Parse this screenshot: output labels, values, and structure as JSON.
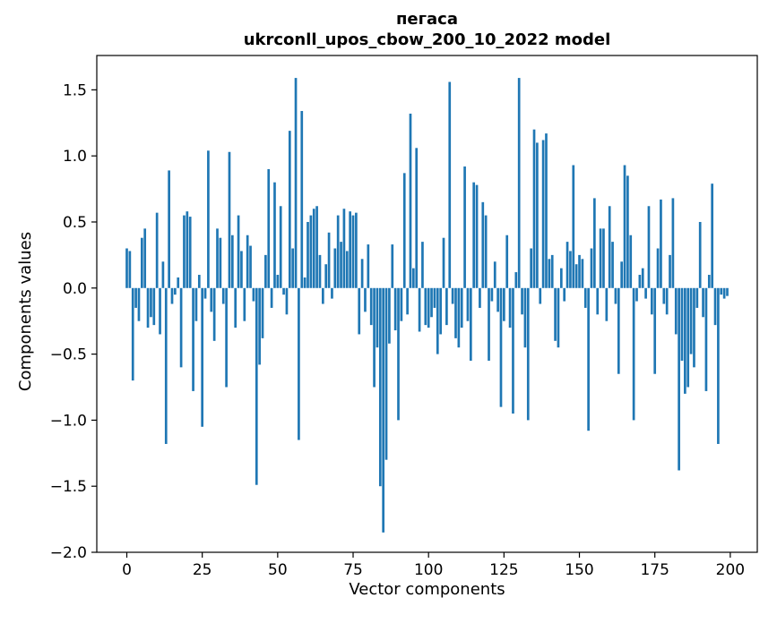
{
  "chart_data": {
    "type": "bar",
    "title_line1": "пегаса",
    "title_line2": "ukrconll_upos_cbow_200_10_2022 model",
    "xlabel": "Vector components",
    "ylabel": "Components values",
    "bar_color": "#1f77b4",
    "background_color": "#ffffff",
    "grid": false,
    "legend": "none",
    "bar_width": 0.8,
    "xlim": [
      -9.95,
      208.95
    ],
    "ylim": [
      -2.0,
      1.76
    ],
    "xticks": {
      "values": [
        0,
        25,
        50,
        75,
        100,
        125,
        150,
        175,
        200
      ],
      "labels": [
        "0",
        "25",
        "50",
        "75",
        "100",
        "125",
        "150",
        "175",
        "200"
      ]
    },
    "yticks": {
      "values": [
        -2.0,
        -1.5,
        -1.0,
        -0.5,
        0.0,
        0.5,
        1.0,
        1.5
      ],
      "labels": [
        "−2.0",
        "−1.5",
        "−1.0",
        "−0.5",
        "0.0",
        "0.5",
        "1.0",
        "1.5"
      ]
    },
    "x_start": 0,
    "values": [
      0.3,
      0.28,
      -0.7,
      -0.15,
      -0.25,
      0.38,
      0.45,
      -0.3,
      -0.22,
      -0.28,
      0.57,
      -0.35,
      0.2,
      -1.18,
      0.89,
      -0.12,
      -0.05,
      0.08,
      -0.6,
      0.55,
      0.58,
      0.54,
      -0.78,
      -0.25,
      0.1,
      -1.05,
      -0.08,
      1.04,
      -0.18,
      -0.4,
      0.45,
      0.38,
      -0.12,
      -0.75,
      1.03,
      0.4,
      -0.3,
      0.55,
      0.28,
      -0.25,
      0.4,
      0.32,
      -0.1,
      -1.49,
      -0.58,
      -0.38,
      0.25,
      0.9,
      -0.15,
      0.8,
      0.1,
      0.62,
      -0.05,
      -0.2,
      1.19,
      0.3,
      1.59,
      -1.15,
      1.34,
      0.08,
      0.5,
      0.55,
      0.6,
      0.62,
      0.25,
      -0.12,
      0.18,
      0.42,
      -0.08,
      0.3,
      0.55,
      0.35,
      0.6,
      0.28,
      0.58,
      0.55,
      0.57,
      -0.35,
      0.22,
      -0.18,
      0.33,
      -0.28,
      -0.75,
      -0.45,
      -1.5,
      -1.85,
      -1.3,
      -0.42,
      0.33,
      -0.32,
      -1.0,
      -0.25,
      0.87,
      -0.2,
      1.32,
      0.15,
      1.06,
      -0.33,
      0.35,
      -0.28,
      -0.3,
      -0.22,
      -0.15,
      -0.5,
      -0.35,
      0.38,
      -0.28,
      1.56,
      -0.12,
      -0.38,
      -0.45,
      -0.3,
      0.92,
      -0.25,
      -0.55,
      0.8,
      0.78,
      -0.15,
      0.65,
      0.55,
      -0.55,
      -0.1,
      0.2,
      -0.18,
      -0.9,
      -0.25,
      0.4,
      -0.3,
      -0.95,
      0.12,
      1.59,
      -0.2,
      -0.45,
      -1.0,
      0.3,
      1.2,
      1.1,
      -0.12,
      1.12,
      1.17,
      0.22,
      0.25,
      -0.4,
      -0.45,
      0.15,
      -0.1,
      0.35,
      0.28,
      0.93,
      0.18,
      0.25,
      0.22,
      -0.15,
      -1.08,
      0.3,
      0.68,
      -0.2,
      0.45,
      0.45,
      -0.25,
      0.62,
      0.35,
      -0.12,
      -0.65,
      0.2,
      0.93,
      0.85,
      0.4,
      -1.0,
      -0.1,
      0.1,
      0.15,
      -0.08,
      0.62,
      -0.2,
      -0.65,
      0.3,
      0.67,
      -0.12,
      -0.2,
      0.25,
      0.68,
      -0.35,
      -1.38,
      -0.55,
      -0.8,
      -0.75,
      -0.5,
      -0.6,
      -0.15,
      0.5,
      -0.22,
      -0.78,
      0.1,
      0.79,
      -0.28,
      -1.18,
      -0.05,
      -0.08,
      -0.06
    ]
  }
}
